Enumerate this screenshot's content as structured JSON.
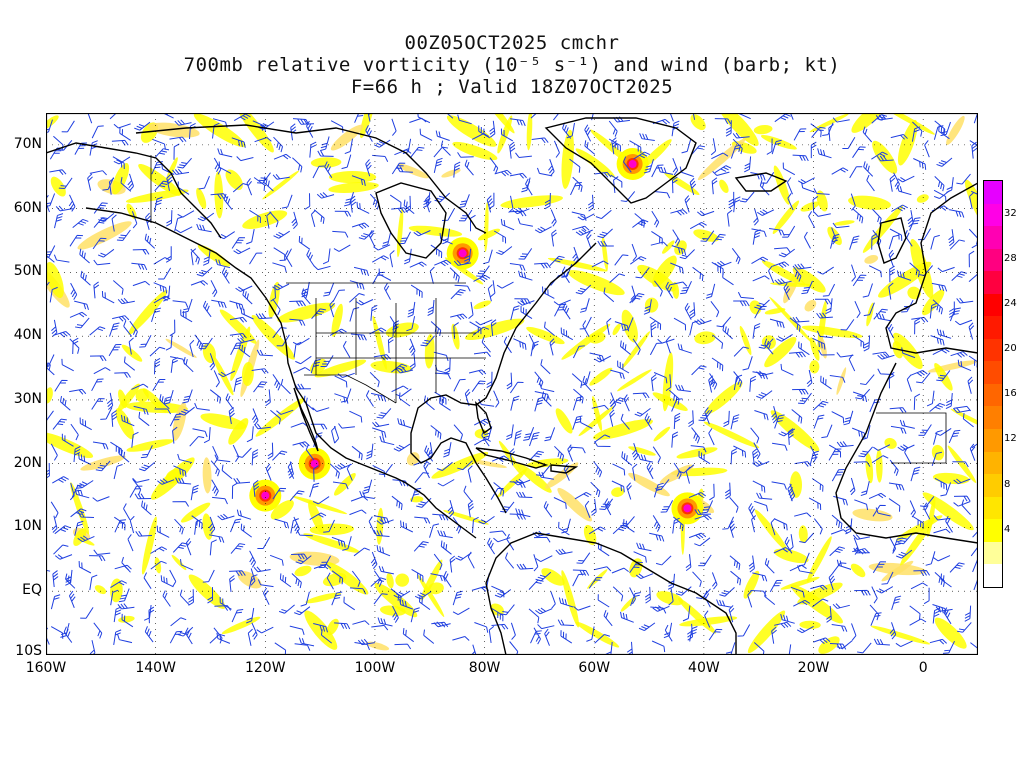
{
  "title": {
    "line1": "00Z05OCT2025 cmchr",
    "line2": "700mb relative vorticity (10⁻⁵ s⁻¹) and wind (barb; kt)",
    "line3": "F=66 h ; Valid 18Z07OCT2025"
  },
  "axes": {
    "lat_labels": [
      "70N",
      "60N",
      "50N",
      "40N",
      "30N",
      "20N",
      "10N",
      "EQ",
      "10S"
    ],
    "lon_labels": [
      "160W",
      "140W",
      "120W",
      "100W",
      "80W",
      "60W",
      "40W",
      "20W",
      "0"
    ],
    "lat_range": [
      -10,
      75
    ],
    "lon_range": [
      -160,
      10
    ]
  },
  "colorbar": {
    "ticks": [
      "4",
      "8",
      "12",
      "16",
      "20",
      "24",
      "28",
      "32"
    ],
    "colors": [
      "#ffffff",
      "#ffff99",
      "#ffff00",
      "#ffe600",
      "#ffcc00",
      "#ffb300",
      "#ff9900",
      "#ff7f00",
      "#ff6600",
      "#ff4c00",
      "#ff3300",
      "#ff1a00",
      "#ff0000",
      "#ff0040",
      "#ff0080",
      "#ff00b3",
      "#ff00e6",
      "#e600ff"
    ]
  },
  "colors": {
    "barb": "#1f3fe0",
    "coast": "#000000",
    "vort_low": "#ffff00",
    "vort_mid": "#ff9900",
    "vort_high": "#ff00cc"
  },
  "features": [
    {
      "name": "cyclone-east-pacific-1",
      "lon": -111,
      "lat": 20
    },
    {
      "name": "cyclone-east-pacific-2",
      "lon": -120,
      "lat": 15
    },
    {
      "name": "cyclone-atlantic",
      "lon": -43,
      "lat": 13
    },
    {
      "name": "vortex-greenland",
      "lon": -53,
      "lat": 67
    },
    {
      "name": "vortex-hudson",
      "lon": -84,
      "lat": 53
    }
  ]
}
